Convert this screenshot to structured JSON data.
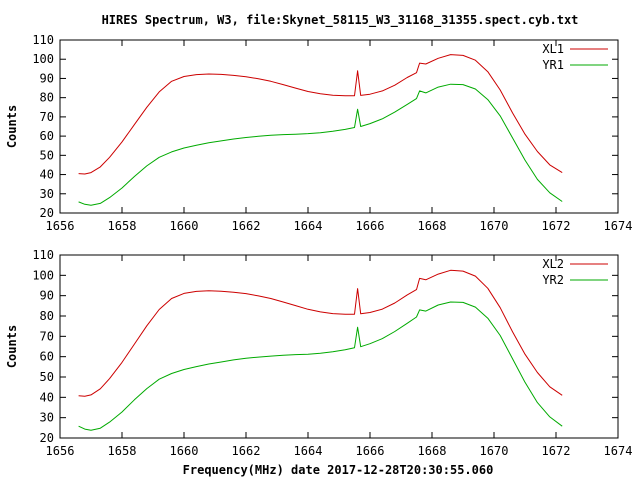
{
  "title": "HIRES Spectrum, W3, file:Skynet_58115_W3_31168_31355.spect.cyb.txt",
  "xlabel": "Frequency(MHz) date 2017-12-28T20:30:55.060",
  "colors": {
    "series1": "#cc0000",
    "series2": "#00aa00",
    "axis": "#000000"
  },
  "chart_data": [
    {
      "type": "line",
      "ylabel": "Counts",
      "xlim": [
        1656,
        1674
      ],
      "ylim": [
        20,
        110
      ],
      "xticks": [
        1656,
        1658,
        1660,
        1662,
        1664,
        1666,
        1668,
        1670,
        1672,
        1674
      ],
      "yticks": [
        20,
        30,
        40,
        50,
        60,
        70,
        80,
        90,
        100,
        110
      ],
      "grid": false,
      "legend_position": "top-right",
      "series": [
        {
          "name": "XL1",
          "x": [
            1656.6,
            1656.8,
            1657.0,
            1657.3,
            1657.6,
            1658.0,
            1658.4,
            1658.8,
            1659.2,
            1659.6,
            1660.0,
            1660.4,
            1660.8,
            1661.2,
            1661.6,
            1662.0,
            1662.4,
            1662.8,
            1663.2,
            1663.6,
            1664.0,
            1664.4,
            1664.8,
            1665.2,
            1665.5,
            1665.6,
            1665.7,
            1666.0,
            1666.4,
            1666.8,
            1667.2,
            1667.5,
            1667.6,
            1667.8,
            1668.2,
            1668.6,
            1669.0,
            1669.4,
            1669.8,
            1670.2,
            1670.6,
            1671.0,
            1671.4,
            1671.8,
            1672.2
          ],
          "values": [
            40.5,
            40.3,
            41.0,
            44.0,
            49.0,
            57.0,
            66.0,
            75.0,
            83.0,
            88.5,
            91.0,
            92.0,
            92.3,
            92.1,
            91.6,
            90.9,
            89.8,
            88.5,
            86.8,
            85.0,
            83.2,
            82.0,
            81.3,
            81.0,
            81.0,
            94.0,
            81.2,
            81.8,
            83.5,
            86.5,
            90.5,
            93.0,
            98.0,
            97.5,
            100.5,
            102.4,
            102.0,
            99.5,
            93.5,
            84.0,
            72.0,
            61.0,
            52.0,
            45.0,
            41.0
          ]
        },
        {
          "name": "YR1",
          "x": [
            1656.6,
            1656.8,
            1657.0,
            1657.3,
            1657.6,
            1658.0,
            1658.4,
            1658.8,
            1659.2,
            1659.6,
            1660.0,
            1660.4,
            1660.8,
            1661.2,
            1661.6,
            1662.0,
            1662.4,
            1662.8,
            1663.2,
            1663.6,
            1664.0,
            1664.4,
            1664.8,
            1665.2,
            1665.5,
            1665.6,
            1665.7,
            1666.0,
            1666.4,
            1666.8,
            1667.2,
            1667.5,
            1667.6,
            1667.8,
            1668.2,
            1668.6,
            1669.0,
            1669.4,
            1669.8,
            1670.2,
            1670.6,
            1671.0,
            1671.4,
            1671.8,
            1672.2
          ],
          "values": [
            25.8,
            24.5,
            24.0,
            25.0,
            28.0,
            33.0,
            39.0,
            44.5,
            49.0,
            51.8,
            53.8,
            55.2,
            56.5,
            57.5,
            58.5,
            59.3,
            59.9,
            60.4,
            60.8,
            61.0,
            61.3,
            61.8,
            62.5,
            63.5,
            64.5,
            74.0,
            65.0,
            66.5,
            69.0,
            72.5,
            76.5,
            79.5,
            83.5,
            82.5,
            85.5,
            87.0,
            86.8,
            84.5,
            79.0,
            70.5,
            59.0,
            47.5,
            37.5,
            30.5,
            26.0
          ]
        }
      ]
    },
    {
      "type": "line",
      "ylabel": "Counts",
      "xlim": [
        1656,
        1674
      ],
      "ylim": [
        20,
        110
      ],
      "xticks": [
        1656,
        1658,
        1660,
        1662,
        1664,
        1666,
        1668,
        1670,
        1672,
        1674
      ],
      "yticks": [
        20,
        30,
        40,
        50,
        60,
        70,
        80,
        90,
        100,
        110
      ],
      "grid": false,
      "legend_position": "top-right",
      "series": [
        {
          "name": "XL2",
          "x": [
            1656.6,
            1656.8,
            1657.0,
            1657.3,
            1657.6,
            1658.0,
            1658.4,
            1658.8,
            1659.2,
            1659.6,
            1660.0,
            1660.4,
            1660.8,
            1661.2,
            1661.6,
            1662.0,
            1662.4,
            1662.8,
            1663.2,
            1663.6,
            1664.0,
            1664.4,
            1664.8,
            1665.2,
            1665.5,
            1665.6,
            1665.7,
            1666.0,
            1666.4,
            1666.8,
            1667.2,
            1667.5,
            1667.6,
            1667.8,
            1668.2,
            1668.6,
            1669.0,
            1669.4,
            1669.8,
            1670.2,
            1670.6,
            1671.0,
            1671.4,
            1671.8,
            1672.2
          ],
          "values": [
            40.8,
            40.5,
            41.2,
            44.2,
            49.2,
            57.2,
            66.2,
            75.2,
            83.2,
            88.6,
            91.1,
            92.1,
            92.4,
            92.2,
            91.7,
            91.0,
            89.9,
            88.6,
            86.9,
            85.1,
            83.3,
            82.0,
            81.2,
            80.9,
            80.9,
            93.5,
            81.1,
            81.7,
            83.4,
            86.4,
            90.4,
            93.0,
            98.5,
            97.8,
            100.6,
            102.5,
            102.1,
            99.6,
            93.6,
            84.1,
            72.2,
            61.2,
            52.2,
            45.2,
            41.0
          ]
        },
        {
          "name": "YR2",
          "x": [
            1656.6,
            1656.8,
            1657.0,
            1657.3,
            1657.6,
            1658.0,
            1658.4,
            1658.8,
            1659.2,
            1659.6,
            1660.0,
            1660.4,
            1660.8,
            1661.2,
            1661.6,
            1662.0,
            1662.4,
            1662.8,
            1663.2,
            1663.6,
            1664.0,
            1664.4,
            1664.8,
            1665.2,
            1665.5,
            1665.6,
            1665.7,
            1666.0,
            1666.4,
            1666.8,
            1667.2,
            1667.5,
            1667.6,
            1667.8,
            1668.2,
            1668.6,
            1669.0,
            1669.4,
            1669.8,
            1670.2,
            1670.6,
            1671.0,
            1671.4,
            1671.8,
            1672.2
          ],
          "values": [
            25.8,
            24.4,
            23.8,
            24.8,
            27.8,
            32.8,
            38.8,
            44.3,
            48.9,
            51.7,
            53.7,
            55.1,
            56.4,
            57.4,
            58.4,
            59.2,
            59.8,
            60.3,
            60.7,
            61.0,
            61.2,
            61.7,
            62.4,
            63.4,
            64.4,
            74.5,
            64.9,
            66.4,
            68.9,
            72.4,
            76.4,
            79.5,
            83.0,
            82.4,
            85.4,
            86.9,
            86.7,
            84.4,
            78.9,
            70.4,
            58.9,
            47.4,
            37.4,
            30.4,
            25.8
          ]
        }
      ]
    }
  ]
}
